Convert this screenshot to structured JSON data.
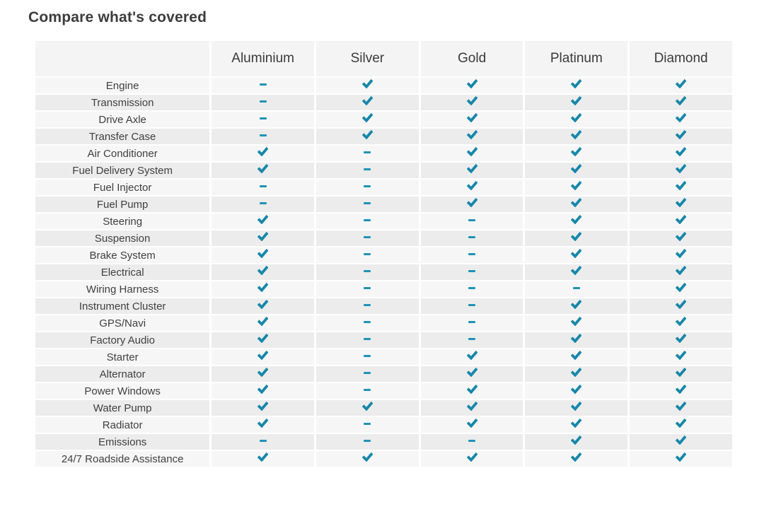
{
  "page": {
    "title": "Compare what's covered"
  },
  "colors": {
    "check": "#1687a9",
    "dash": "#1f93b6",
    "row_light": "#f6f6f6",
    "row_dark": "#ececec",
    "header_bg": "#f4f4f4"
  },
  "icons": {
    "covered": "check-icon",
    "not_covered": "dash-icon"
  },
  "table": {
    "columns": [
      "Aluminium",
      "Silver",
      "Gold",
      "Platinum",
      "Diamond"
    ],
    "rows": [
      {
        "label": "Engine",
        "values": [
          "dash",
          "check",
          "check",
          "check",
          "check"
        ]
      },
      {
        "label": "Transmission",
        "values": [
          "dash",
          "check",
          "check",
          "check",
          "check"
        ]
      },
      {
        "label": "Drive Axle",
        "values": [
          "dash",
          "check",
          "check",
          "check",
          "check"
        ]
      },
      {
        "label": "Transfer Case",
        "values": [
          "dash",
          "check",
          "check",
          "check",
          "check"
        ]
      },
      {
        "label": "Air Conditioner",
        "values": [
          "check",
          "dash",
          "check",
          "check",
          "check"
        ]
      },
      {
        "label": "Fuel Delivery System",
        "values": [
          "check",
          "dash",
          "check",
          "check",
          "check"
        ]
      },
      {
        "label": "Fuel Injector",
        "values": [
          "dash",
          "dash",
          "check",
          "check",
          "check"
        ]
      },
      {
        "label": "Fuel Pump",
        "values": [
          "dash",
          "dash",
          "check",
          "check",
          "check"
        ]
      },
      {
        "label": "Steering",
        "values": [
          "check",
          "dash",
          "dash",
          "check",
          "check"
        ]
      },
      {
        "label": "Suspension",
        "values": [
          "check",
          "dash",
          "dash",
          "check",
          "check"
        ]
      },
      {
        "label": "Brake System",
        "values": [
          "check",
          "dash",
          "dash",
          "check",
          "check"
        ]
      },
      {
        "label": "Electrical",
        "values": [
          "check",
          "dash",
          "dash",
          "check",
          "check"
        ]
      },
      {
        "label": "Wiring Harness",
        "values": [
          "check",
          "dash",
          "dash",
          "dash",
          "check"
        ]
      },
      {
        "label": "Instrument Cluster",
        "values": [
          "check",
          "dash",
          "dash",
          "check",
          "check"
        ]
      },
      {
        "label": "GPS/Navi",
        "values": [
          "check",
          "dash",
          "dash",
          "check",
          "check"
        ]
      },
      {
        "label": "Factory Audio",
        "values": [
          "check",
          "dash",
          "dash",
          "check",
          "check"
        ]
      },
      {
        "label": "Starter",
        "values": [
          "check",
          "dash",
          "check",
          "check",
          "check"
        ]
      },
      {
        "label": "Alternator",
        "values": [
          "check",
          "dash",
          "check",
          "check",
          "check"
        ]
      },
      {
        "label": "Power Windows",
        "values": [
          "check",
          "dash",
          "check",
          "check",
          "check"
        ]
      },
      {
        "label": "Water Pump",
        "values": [
          "check",
          "check",
          "check",
          "check",
          "check"
        ]
      },
      {
        "label": "Radiator",
        "values": [
          "check",
          "dash",
          "check",
          "check",
          "check"
        ]
      },
      {
        "label": "Emissions",
        "values": [
          "dash",
          "dash",
          "dash",
          "check",
          "check"
        ]
      },
      {
        "label": "24/7 Roadside Assistance",
        "values": [
          "check",
          "check",
          "check",
          "check",
          "check"
        ]
      }
    ]
  }
}
